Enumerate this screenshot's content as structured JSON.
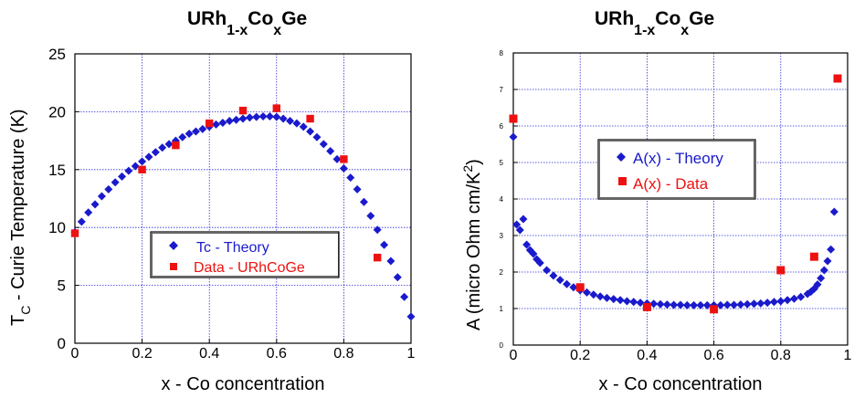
{
  "chart_data": [
    {
      "type": "scatter",
      "title": {
        "base": "URh",
        "sub1": "1-x",
        "mid": "Co",
        "sub2": "x",
        "end": "Ge"
      },
      "xlabel": "x - Co concentration",
      "ylabel": {
        "main": "T",
        "sub": "C",
        "rest": " - Curie Temperature (K)"
      },
      "xlim": [
        0,
        1
      ],
      "ylim": [
        0,
        25
      ],
      "xticks": [
        "0",
        "0.2",
        "0.4",
        "0.6",
        "0.8",
        "1"
      ],
      "yticks": [
        "0",
        "5",
        "10",
        "15",
        "20",
        "25"
      ],
      "grid": true,
      "legend": {
        "position": "lower-center",
        "entries": [
          "Tc - Theory",
          "Data - URhCoGe"
        ]
      },
      "series": [
        {
          "name": "Tc - Theory",
          "marker": "diamond",
          "color": "#1a1acc",
          "x": [
            0,
            0.02,
            0.04,
            0.06,
            0.08,
            0.1,
            0.12,
            0.14,
            0.16,
            0.18,
            0.2,
            0.22,
            0.24,
            0.26,
            0.28,
            0.3,
            0.32,
            0.34,
            0.36,
            0.38,
            0.4,
            0.42,
            0.44,
            0.46,
            0.48,
            0.5,
            0.52,
            0.54,
            0.56,
            0.58,
            0.6,
            0.62,
            0.64,
            0.66,
            0.68,
            0.7,
            0.72,
            0.74,
            0.76,
            0.78,
            0.8,
            0.82,
            0.84,
            0.86,
            0.88,
            0.9,
            0.92,
            0.94,
            0.96,
            0.98,
            1.0
          ],
          "y": [
            9.6,
            10.5,
            11.3,
            12.0,
            12.7,
            13.3,
            13.9,
            14.4,
            14.9,
            15.3,
            15.7,
            16.1,
            16.5,
            16.9,
            17.2,
            17.5,
            17.8,
            18.1,
            18.3,
            18.5,
            18.7,
            18.9,
            19.05,
            19.2,
            19.3,
            19.4,
            19.5,
            19.55,
            19.6,
            19.6,
            19.55,
            19.4,
            19.2,
            19.0,
            18.7,
            18.3,
            17.8,
            17.2,
            16.6,
            15.9,
            15.1,
            14.3,
            13.3,
            12.2,
            11.0,
            9.8,
            8.5,
            7.1,
            5.7,
            4.0,
            2.3
          ]
        },
        {
          "name": "Data - URhCoGe",
          "marker": "square",
          "color": "#ee1111",
          "x": [
            0,
            0.2,
            0.3,
            0.4,
            0.5,
            0.6,
            0.7,
            0.8,
            0.9
          ],
          "y": [
            9.5,
            15.0,
            17.1,
            19.0,
            20.1,
            20.3,
            19.4,
            15.9,
            7.4
          ]
        }
      ]
    },
    {
      "type": "scatter",
      "title": {
        "base": "URh",
        "sub1": "1-x",
        "mid": "Co",
        "sub2": "x",
        "end": "Ge"
      },
      "xlabel": "x - Co concentration",
      "ylabel": {
        "main": "A (micro Ohm cm/K",
        "sup": "2",
        "rest": ")"
      },
      "xlim": [
        0,
        1
      ],
      "ylim": [
        0,
        8
      ],
      "xticks": [
        "0",
        "0.2",
        "0.4",
        "0.6",
        "0.8",
        "1"
      ],
      "yticks": [
        "0",
        "1",
        "2",
        "3",
        "4",
        "5",
        "6",
        "7",
        "8"
      ],
      "grid": true,
      "legend": {
        "position": "center",
        "entries": [
          "A(x) - Theory",
          "A(x) - Data"
        ]
      },
      "series": [
        {
          "name": "A(x) - Theory",
          "marker": "diamond",
          "color": "#1a1acc",
          "x": [
            0,
            0.01,
            0.02,
            0.03,
            0.04,
            0.05,
            0.06,
            0.07,
            0.08,
            0.1,
            0.12,
            0.14,
            0.16,
            0.18,
            0.2,
            0.22,
            0.24,
            0.26,
            0.28,
            0.3,
            0.32,
            0.34,
            0.36,
            0.38,
            0.4,
            0.42,
            0.44,
            0.46,
            0.48,
            0.5,
            0.52,
            0.54,
            0.56,
            0.58,
            0.6,
            0.62,
            0.64,
            0.66,
            0.68,
            0.7,
            0.72,
            0.74,
            0.76,
            0.78,
            0.8,
            0.82,
            0.84,
            0.86,
            0.88,
            0.89,
            0.9,
            0.91,
            0.92,
            0.93,
            0.94,
            0.95,
            0.96
          ],
          "y": [
            5.7,
            3.3,
            3.15,
            3.45,
            2.75,
            2.6,
            2.5,
            2.35,
            2.25,
            2.05,
            1.9,
            1.78,
            1.67,
            1.58,
            1.5,
            1.44,
            1.38,
            1.33,
            1.29,
            1.26,
            1.23,
            1.2,
            1.18,
            1.16,
            1.14,
            1.13,
            1.12,
            1.11,
            1.1,
            1.1,
            1.09,
            1.09,
            1.09,
            1.09,
            1.09,
            1.09,
            1.1,
            1.1,
            1.11,
            1.12,
            1.13,
            1.14,
            1.16,
            1.18,
            1.2,
            1.23,
            1.27,
            1.32,
            1.4,
            1.46,
            1.54,
            1.66,
            1.83,
            2.05,
            2.3,
            2.62,
            3.65
          ]
        },
        {
          "name": "A(x) - Data",
          "marker": "square",
          "color": "#ee1111",
          "x": [
            0,
            0.2,
            0.4,
            0.6,
            0.8,
            0.9,
            0.97
          ],
          "y": [
            6.2,
            1.58,
            1.04,
            0.98,
            2.05,
            2.42,
            7.3
          ]
        }
      ]
    }
  ]
}
